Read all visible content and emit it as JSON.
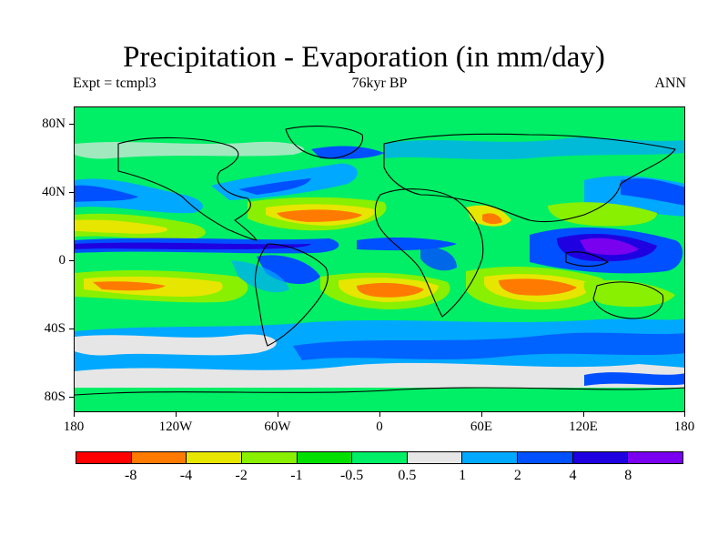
{
  "title": "Precipitation - Evaporation (in mm/day)",
  "subtitle_left": "Expt = tcmpl3",
  "subtitle_center": "76kyr BP",
  "subtitle_right": "ANN",
  "lat_ticks": [
    "80N",
    "40N",
    "0",
    "40S",
    "80S"
  ],
  "lon_ticks": [
    "180",
    "120W",
    "60W",
    "0",
    "60E",
    "120E",
    "180"
  ],
  "colorbar": {
    "labels": [
      "-8",
      "-4",
      "-2",
      "-1",
      "-0.5",
      "0.5",
      "1",
      "2",
      "4",
      "8"
    ],
    "colors": [
      "#ff0000",
      "#ff7a00",
      "#e6e600",
      "#88f000",
      "#00e000",
      "#00ef66",
      "#e6e6e6",
      "#00a8ff",
      "#0050ff",
      "#1e00e0",
      "#7a00f0"
    ]
  },
  "palette": {
    "ocean_base": "#00ef66",
    "dry_strong": "#ff7a00",
    "dry_medium": "#e6e600",
    "dry_light": "#88f000",
    "wet_light": "#e6e6e6",
    "wet_medium": "#00a8ff",
    "wet_strong": "#0050ff",
    "wet_very": "#1e00e0",
    "wet_extreme": "#7a00f0"
  }
}
